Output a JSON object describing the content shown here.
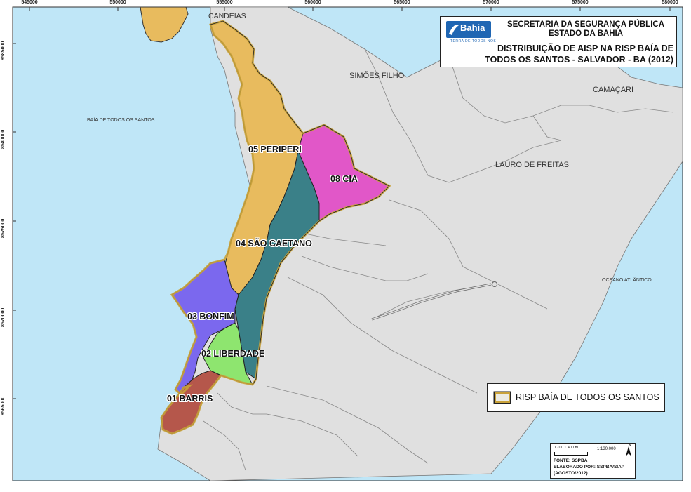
{
  "header": {
    "org_line1": "SECRETARIA DA SEGURANÇA PÚBLICA",
    "org_line2": "ESTADO DA BAHIA",
    "map_title_line1": "DISTRIBUIÇÃO DE AISP NA RISP BAÍA DE",
    "map_title_line2": "TODOS OS SANTOS - SALVADOR - BA (2012)",
    "logo_text": "Bahia",
    "logo_subtext": "TERRA DE TODOS NÓS"
  },
  "coordinates": {
    "top": [
      "545000",
      "550000",
      "555000",
      "560000",
      "565000",
      "570000",
      "575000",
      "580000"
    ],
    "left": [
      "8585000",
      "8580000",
      "8575000",
      "8570000",
      "8565000"
    ]
  },
  "places": {
    "candeias": "CANDEIAS",
    "simoes_filho": "SIMÕES FILHO",
    "camacari": "CAMAÇARI",
    "baia": "BAÍA DE TODOS OS SANTOS",
    "lauro": "LAURO DE FREITAS",
    "oceano": "OCEANO ATLÂNTICO"
  },
  "aisp": [
    {
      "id": "01",
      "label": "01 BARRIS",
      "color": "#b5574b"
    },
    {
      "id": "02",
      "label": "02 LIBERDADE",
      "color": "#8ee56f"
    },
    {
      "id": "03",
      "label": "03 BONFIM",
      "color": "#7b68ee"
    },
    {
      "id": "04",
      "label": "04 SÃO CAETANO",
      "color": "#3a8088"
    },
    {
      "id": "05",
      "label": "05 PERIPERI",
      "color": "#e8bb5e"
    },
    {
      "id": "08",
      "label": "08 CIA",
      "color": "#e157c8"
    }
  ],
  "colors": {
    "water": "#bfe6f7",
    "land": "#e0e0e0",
    "risp_border": "#c9a23a"
  },
  "legend": {
    "label": "RISP BAÍA DE TODOS OS SANTOS"
  },
  "info": {
    "scale_ticks": "0    700  1.400 m",
    "scale_ratio": "1:130.000",
    "north": "N",
    "fonte": "FONTE: SSPBA",
    "elaborado": "ELABORADO POR: SSPBA/SIAP",
    "data": "(AGOSTO/2012)"
  }
}
